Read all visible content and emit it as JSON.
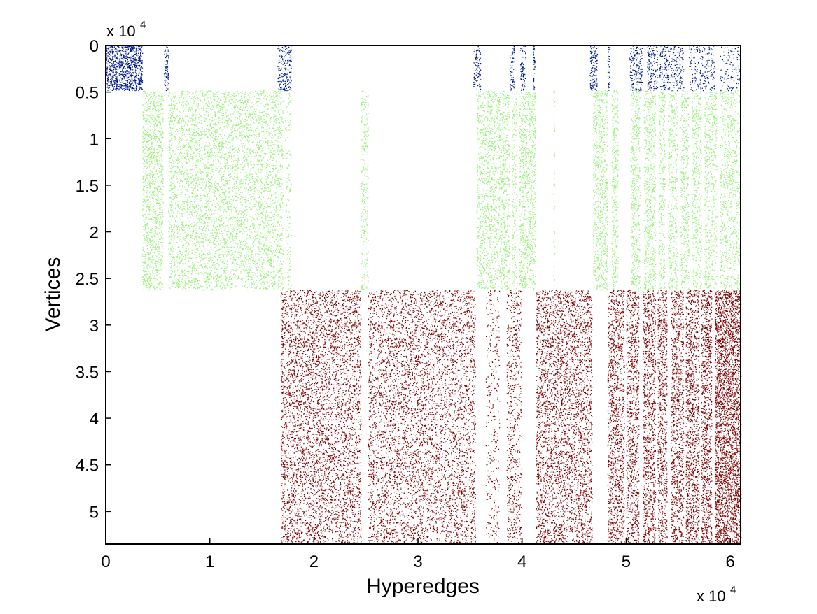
{
  "chart_data": {
    "type": "scatter",
    "subtype": "sparse-matrix-spy-plot",
    "xlabel": "Hyperedges",
    "ylabel": "Vertices",
    "xlim": [
      0,
      61000
    ],
    "ylim": [
      0,
      53500
    ],
    "y_reversed": true,
    "x_ticks": [
      0,
      10000,
      20000,
      30000,
      40000,
      50000,
      60000
    ],
    "x_tick_labels": [
      "0",
      "1",
      "2",
      "3",
      "4",
      "5",
      "6"
    ],
    "y_ticks": [
      0,
      5000,
      10000,
      15000,
      20000,
      25000,
      30000,
      35000,
      40000,
      45000,
      50000
    ],
    "y_tick_labels": [
      "0",
      "0.5",
      "1",
      "1.5",
      "2",
      "2.5",
      "3",
      "3.5",
      "4",
      "4.5",
      "5"
    ],
    "x_exponent_label": "x 10",
    "x_exponent_power": "4",
    "y_exponent_label": "x 10",
    "y_exponent_power": "4",
    "grid": false,
    "legend": "none",
    "series": [
      {
        "color": "#001a8c",
        "vertex_range": [
          0,
          4800
        ],
        "hyperedge_bands": [
          {
            "x": [
              0,
              3500
            ],
            "density": 1.0
          },
          {
            "x": [
              5600,
              6000
            ],
            "density": 0.8
          },
          {
            "x": [
              16500,
              17800
            ],
            "density": 0.6
          },
          {
            "x": [
              35300,
              36000
            ],
            "density": 0.5
          },
          {
            "x": [
              38800,
              39200
            ],
            "density": 0.6
          },
          {
            "x": [
              39800,
              40300
            ],
            "density": 0.6
          },
          {
            "x": [
              41000,
              41200
            ],
            "density": 0.8
          },
          {
            "x": [
              46500,
              47200
            ],
            "density": 0.7
          },
          {
            "x": [
              48200,
              48400
            ],
            "density": 0.9
          },
          {
            "x": [
              50300,
              51500
            ],
            "density": 0.5
          },
          {
            "x": [
              52000,
              53000
            ],
            "density": 0.5
          },
          {
            "x": [
              53200,
              55500
            ],
            "density": 0.4
          },
          {
            "x": [
              56000,
              58500
            ],
            "density": 0.3
          },
          {
            "x": [
              59000,
              61000
            ],
            "density": 0.2
          }
        ]
      },
      {
        "color": "#99f07a",
        "vertex_range": [
          4800,
          26200
        ],
        "hyperedge_bands": [
          {
            "x": [
              3500,
              5500
            ],
            "density": 0.55
          },
          {
            "x": [
              6000,
              17000
            ],
            "density": 0.55
          },
          {
            "x": [
              17200,
              17800
            ],
            "density": 0.2
          },
          {
            "x": [
              24500,
              25200
            ],
            "density": 0.35
          },
          {
            "x": [
              35600,
              38800
            ],
            "density": 0.45
          },
          {
            "x": [
              39000,
              39500
            ],
            "density": 0.4
          },
          {
            "x": [
              39700,
              41300
            ],
            "density": 0.5
          },
          {
            "x": [
              43000,
              43100
            ],
            "density": 0.6
          },
          {
            "x": [
              46800,
              48200
            ],
            "density": 0.5
          },
          {
            "x": [
              48600,
              49200
            ],
            "density": 0.55
          },
          {
            "x": [
              50400,
              51300
            ],
            "density": 0.5
          },
          {
            "x": [
              51700,
              52800
            ],
            "density": 0.5
          },
          {
            "x": [
              53100,
              53700
            ],
            "density": 0.5
          },
          {
            "x": [
              54000,
              54900
            ],
            "density": 0.45
          },
          {
            "x": [
              55200,
              56000
            ],
            "density": 0.45
          },
          {
            "x": [
              56300,
              57200
            ],
            "density": 0.45
          },
          {
            "x": [
              57500,
              58700
            ],
            "density": 0.4
          },
          {
            "x": [
              59000,
              61000
            ],
            "density": 0.35
          }
        ]
      },
      {
        "color": "#800000",
        "vertex_range": [
          26200,
          53500
        ],
        "hyperedge_bands": [
          {
            "x": [
              16800,
              24500
            ],
            "density": 0.4
          },
          {
            "x": [
              25200,
              35500
            ],
            "density": 0.42
          },
          {
            "x": [
              36500,
              37800
            ],
            "density": 0.15
          },
          {
            "x": [
              38500,
              39900
            ],
            "density": 0.3
          },
          {
            "x": [
              41300,
              46700
            ],
            "density": 0.45
          },
          {
            "x": [
              48200,
              49800
            ],
            "density": 0.5
          },
          {
            "x": [
              50000,
              51200
            ],
            "density": 0.5
          },
          {
            "x": [
              51600,
              52800
            ],
            "density": 0.55
          },
          {
            "x": [
              53000,
              53900
            ],
            "density": 0.55
          },
          {
            "x": [
              54300,
              55500
            ],
            "density": 0.55
          },
          {
            "x": [
              55700,
              57000
            ],
            "density": 0.6
          },
          {
            "x": [
              57200,
              58200
            ],
            "density": 0.65
          },
          {
            "x": [
              58500,
              61000
            ],
            "density": 0.9
          }
        ]
      }
    ]
  }
}
